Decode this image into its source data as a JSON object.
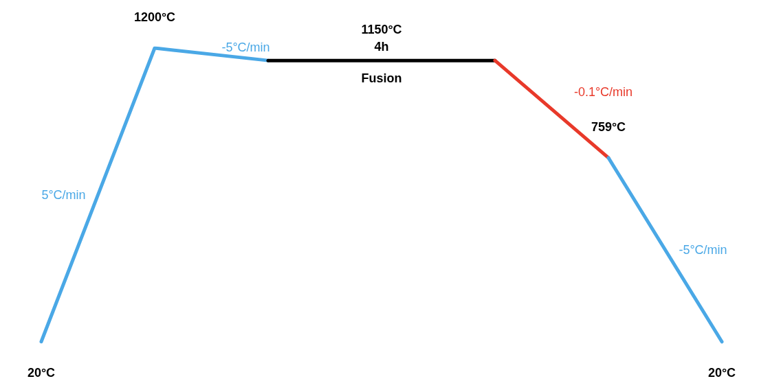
{
  "chart_data": {
    "type": "line",
    "categories": [
      null,
      null,
      null,
      null,
      null,
      null,
      null
    ],
    "series": [
      {
        "color": "#4aa8e6",
        "values": [
          20,
          1200,
          1150,
          null,
          null,
          null,
          null
        ],
        "value_labels": [
          "20°C",
          "1200°C",
          null,
          null,
          null,
          null,
          null
        ]
      },
      {
        "color": "#000000",
        "values": [
          null,
          null,
          1150,
          1150,
          1150,
          null,
          null
        ],
        "value_labels": [
          null,
          null,
          null,
          "1150°C",
          null,
          null,
          null
        ]
      },
      {
        "color": "#e8392a",
        "values": [
          null,
          null,
          null,
          null,
          1150,
          759,
          null
        ],
        "value_labels": [
          null,
          null,
          null,
          null,
          null,
          "759°C",
          null
        ]
      },
      {
        "color": "#4aa8e6",
        "values": [
          null,
          null,
          null,
          null,
          null,
          759,
          20
        ],
        "value_labels": [
          null,
          null,
          null,
          null,
          null,
          null,
          "20°C"
        ]
      }
    ],
    "annotations": [
      "5°C/min",
      "-5°C/min",
      "4h",
      "Fusion",
      "-0.1°C/min",
      "-5°C/min"
    ]
  }
}
